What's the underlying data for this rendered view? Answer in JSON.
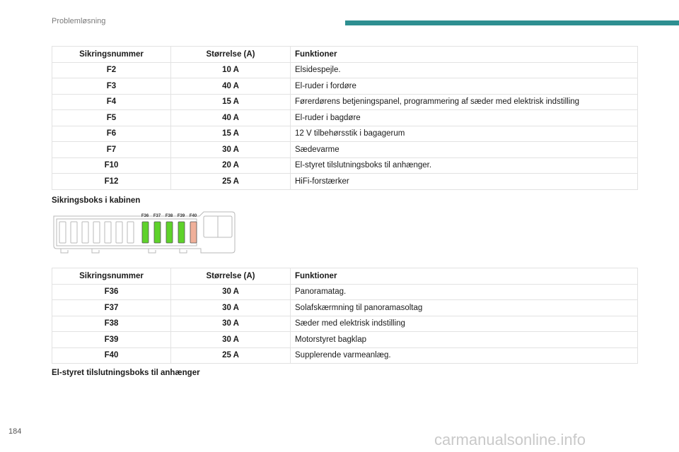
{
  "header": {
    "section": "Problemløsning"
  },
  "colors": {
    "accent": "#2e8f91",
    "fuse_green": "#5ed22a",
    "fuse_salmon": "#f0b09a"
  },
  "table1": {
    "headers": [
      "Sikringsnummer",
      "Størrelse (A)",
      "Funktioner"
    ],
    "rows": [
      [
        "F2",
        "10 A",
        "Elsidespejle."
      ],
      [
        "F3",
        "40 A",
        "El-ruder i fordøre"
      ],
      [
        "F4",
        "15 A",
        "Førerdørens betjeningspanel, programmering af sæder med elektrisk indstilling"
      ],
      [
        "F5",
        "40 A",
        "El-ruder i bagdøre"
      ],
      [
        "F6",
        "15 A",
        "12 V tilbehørsstik i bagagerum"
      ],
      [
        "F7",
        "30 A",
        "Sædevarme"
      ],
      [
        "F10",
        "20 A",
        "El-styret tilslutningsboks til anhænger."
      ],
      [
        "F12",
        "25 A",
        "HiFi-forstærker"
      ]
    ]
  },
  "heading_cabin": "Sikringsboks i kabinen",
  "fusebox": {
    "labels": [
      "F36",
      "F37",
      "F38",
      "F39",
      "F40"
    ]
  },
  "table2": {
    "headers": [
      "Sikringsnummer",
      "Størrelse (A)",
      "Funktioner"
    ],
    "rows": [
      [
        "F36",
        "30 A",
        "Panoramatag."
      ],
      [
        "F37",
        "30 A",
        "Solafskærmning til panoramasoltag"
      ],
      [
        "F38",
        "30 A",
        "Sæder med elektrisk indstilling"
      ],
      [
        "F39",
        "30 A",
        "Motorstyret bagklap"
      ],
      [
        "F40",
        "25 A",
        "Supplerende varmeanlæg."
      ]
    ]
  },
  "heading_trailer": "El-styret tilslutningsboks til anhænger",
  "footer": {
    "page_number": "184",
    "watermark": "carmanualsonline.info"
  }
}
